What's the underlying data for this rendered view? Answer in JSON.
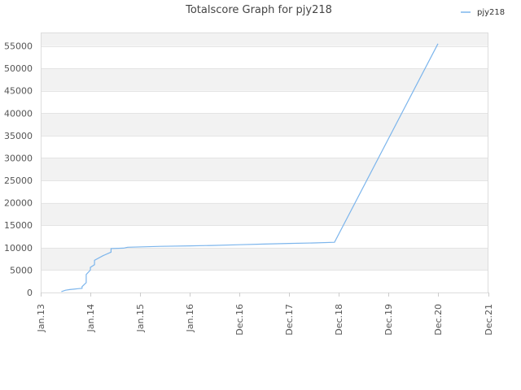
{
  "chart_data": {
    "type": "line",
    "title": "Totalscore Graph for pjy218",
    "xlabel": "",
    "ylabel": "",
    "x_tick_labels": [
      "Jan.13",
      "Jan.14",
      "Jan.15",
      "Jan.16",
      "Dec.16",
      "Dec.17",
      "Dec.18",
      "Dec.19",
      "Dec.20",
      "Dec.21"
    ],
    "y_ticks": [
      0,
      5000,
      10000,
      15000,
      20000,
      25000,
      30000,
      35000,
      40000,
      45000,
      50000,
      55000
    ],
    "y_tick_labels": [
      "0",
      "5000",
      "10000",
      "15000",
      "20000",
      "25000",
      "30000",
      "35000",
      "40000",
      "45000",
      "50000",
      "55000"
    ],
    "ylim": [
      0,
      58000
    ],
    "xlim": [
      "2013-01",
      "2021-12"
    ],
    "grid": true,
    "band_colors": [
      "#f2f2f2",
      "#ffffff"
    ],
    "legend_position": "top-right",
    "series": [
      {
        "name": "pjy218",
        "color": "#7cb5ec",
        "points": [
          [
            "2013-06",
            200
          ],
          [
            "2013-07",
            500
          ],
          [
            "2013-08",
            650
          ],
          [
            "2013-09",
            750
          ],
          [
            "2013-10",
            850
          ],
          [
            "2013-11",
            950
          ],
          [
            "2013-11",
            1300
          ],
          [
            "2013-12",
            2200
          ],
          [
            "2013-12",
            4000
          ],
          [
            "2014-01",
            5000
          ],
          [
            "2014-01",
            5600
          ],
          [
            "2014-02",
            6200
          ],
          [
            "2014-02",
            7200
          ],
          [
            "2014-04",
            8200
          ],
          [
            "2014-06",
            9000
          ],
          [
            "2014-06",
            9800
          ],
          [
            "2014-09",
            9900
          ],
          [
            "2014-10",
            10100
          ],
          [
            "2015-06",
            10300
          ],
          [
            "2016-01",
            10400
          ],
          [
            "2016-06",
            10500
          ],
          [
            "2016-12",
            10650
          ],
          [
            "2017-06",
            10800
          ],
          [
            "2017-12",
            10950
          ],
          [
            "2018-06",
            11050
          ],
          [
            "2018-11",
            11200
          ],
          [
            "2020-12",
            55500
          ]
        ]
      }
    ]
  }
}
